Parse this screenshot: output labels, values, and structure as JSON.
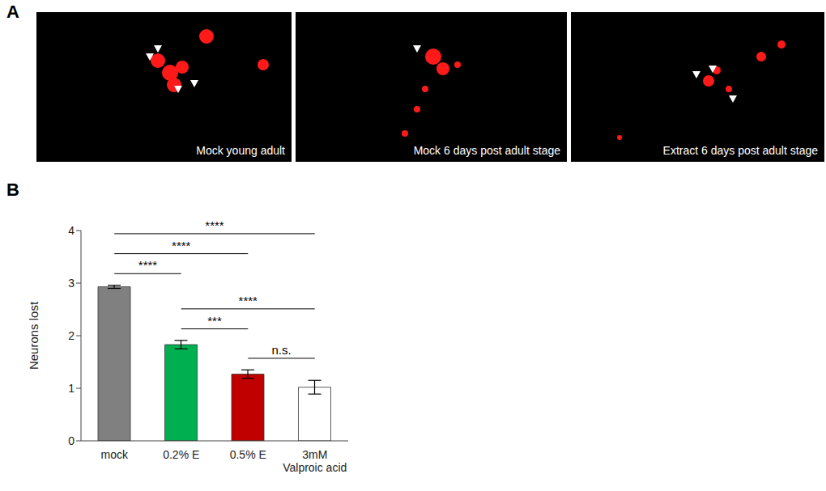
{
  "panel_labels": [
    "A",
    "B"
  ],
  "images": [
    {
      "caption": "Mock young adult"
    },
    {
      "caption": "Mock 6 days post adult stage"
    },
    {
      "caption": "Extract 6 days post adult stage"
    }
  ],
  "chart_data": {
    "type": "bar",
    "categories": [
      "mock",
      "0.2% E",
      "0.5% E",
      "3mM Valproic acid"
    ],
    "values": [
      2.93,
      1.83,
      1.27,
      1.02
    ],
    "errors": [
      0.03,
      0.08,
      0.08,
      0.13
    ],
    "colors": [
      "#808080",
      "#00b050",
      "#c00000",
      "#ffffff"
    ],
    "ylim": [
      0,
      4
    ],
    "yticks": [
      0,
      1,
      2,
      3,
      4
    ],
    "y_label": "Neurons lost",
    "grid": false,
    "significance": [
      {
        "from": "mock",
        "to": "0.2% E",
        "label": "****"
      },
      {
        "from": "mock",
        "to": "0.5% E",
        "label": "****"
      },
      {
        "from": "mock",
        "to": "3mM Valproic acid",
        "label": "****"
      },
      {
        "from": "0.2% E",
        "to": "0.5% E",
        "label": "***"
      },
      {
        "from": "0.2% E",
        "to": "3mM Valproic acid",
        "label": "****"
      },
      {
        "from": "0.5% E",
        "to": "3mM Valproic acid",
        "label": "n.s."
      }
    ]
  }
}
